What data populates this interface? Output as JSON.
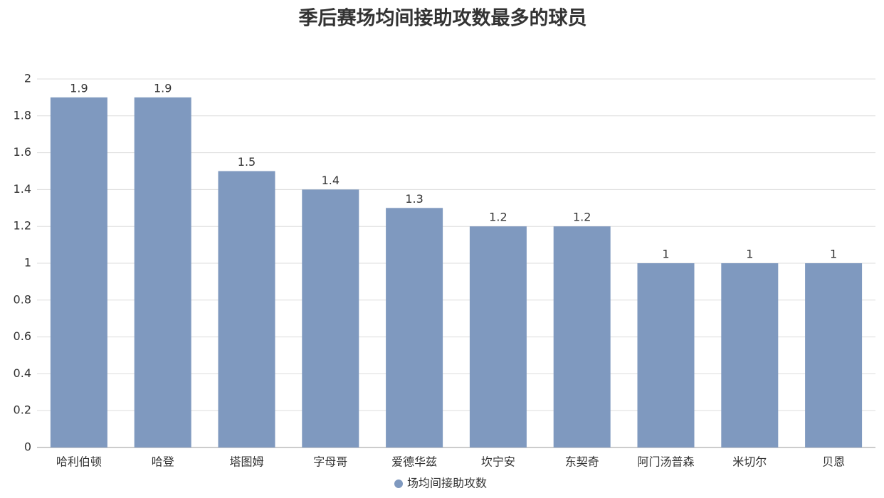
{
  "chart_data": {
    "type": "bar",
    "title": "季后赛场均间接助攻数最多的球员",
    "categories": [
      "哈利伯顿",
      "哈登",
      "塔图姆",
      "字母哥",
      "爱德华兹",
      "坎宁安",
      "东契奇",
      "阿门汤普森",
      "米切尔",
      "贝恩"
    ],
    "series": [
      {
        "name": "场均间接助攻数",
        "color": "#7f99bf",
        "values": [
          1.9,
          1.9,
          1.5,
          1.4,
          1.3,
          1.2,
          1.2,
          1,
          1,
          1
        ]
      }
    ],
    "ylim": [
      0,
      2
    ],
    "yticks": [
      0,
      0.2,
      0.4,
      0.6,
      0.8,
      1,
      1.2,
      1.4,
      1.6,
      1.8,
      2
    ],
    "grid": true,
    "legend": "bottom"
  }
}
